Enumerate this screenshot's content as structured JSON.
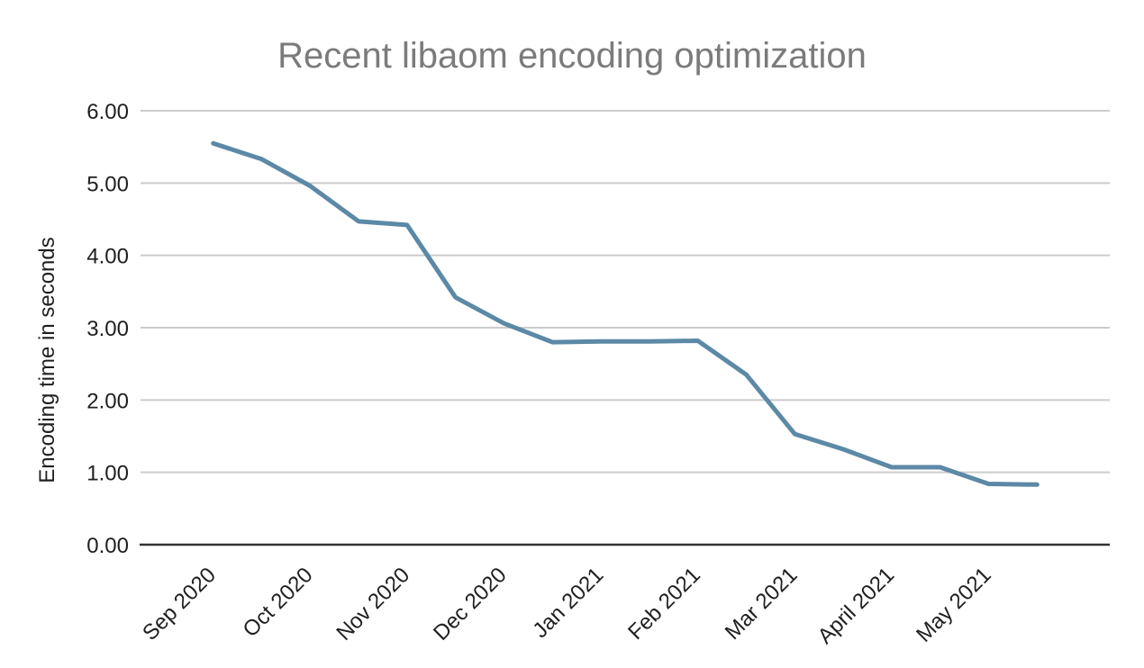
{
  "chart_data": {
    "type": "line",
    "title": "Recent libaom encoding optimization",
    "xlabel": "",
    "ylabel": "Encoding time in seconds",
    "x_tick_labels": [
      "Sep 2020",
      "Oct 2020",
      "Nov 2020",
      "Dec 2020",
      "Jan 2021",
      "Feb 2021",
      "Mar 2021",
      "April 2021",
      "May 2021"
    ],
    "y_ticks": [
      "6.00",
      "5.00",
      "4.00",
      "3.00",
      "2.00",
      "1.00",
      "0.00"
    ],
    "ylim": [
      0,
      6
    ],
    "points_per_month": 2,
    "series": [
      {
        "name": "Encoding time",
        "values": [
          5.55,
          5.33,
          4.96,
          4.47,
          4.42,
          3.42,
          3.06,
          2.8,
          2.81,
          2.81,
          2.82,
          2.35,
          1.53,
          1.32,
          1.07,
          1.07,
          0.84,
          0.83
        ]
      }
    ],
    "grid": true,
    "legend_position": "none",
    "colors": {
      "line": "#5b89a6",
      "title": "#7b7b7b",
      "labels": "#1f1f1f",
      "gridline": "#cccccc",
      "axis": "#333333",
      "background": "#ffffff"
    }
  }
}
